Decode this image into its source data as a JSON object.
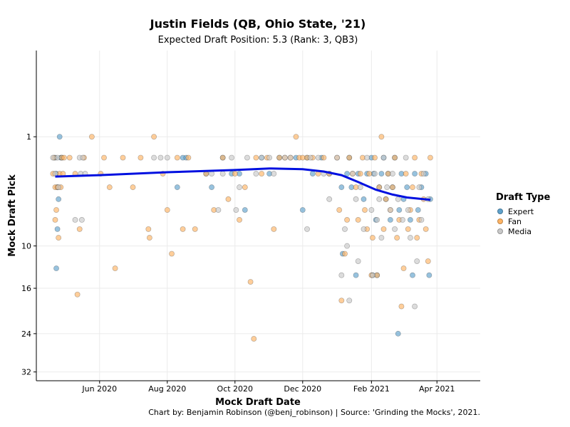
{
  "chart_data": {
    "type": "scatter",
    "title": "Justin Fields (QB, Ohio State, '21)",
    "subtitle": "Expected Draft Position: 5.3 (Rank: 3, QB3)",
    "xlabel": "Mock Draft Date",
    "ylabel": "Mock Draft Pick",
    "x_ticks": [
      "Jun 2020",
      "Aug 2020",
      "Oct 2020",
      "Dec 2020",
      "Feb 2021",
      "Apr 2021"
    ],
    "x_range": [
      "2020-04-05",
      "2021-05-10"
    ],
    "y_ticks": [
      1,
      10,
      16,
      24,
      32
    ],
    "y_range": [
      34,
      -0.5
    ],
    "y_scale": "sqrt",
    "grid": true,
    "legend": {
      "title": "Draft Type",
      "position": "right",
      "entries": [
        "Expert",
        "Fan",
        "Media"
      ]
    },
    "colors": {
      "Expert": "#5fa2cc",
      "Fan": "#ffb464",
      "Media": "#c9c9c9",
      "trend": "#0010e0"
    },
    "series": [
      {
        "name": "Expert",
        "points": [
          [
            "2020-04-22",
            2
          ],
          [
            "2020-04-23",
            3
          ],
          [
            "2020-04-24",
            4
          ],
          [
            "2020-04-25",
            5
          ],
          [
            "2020-04-26",
            1
          ],
          [
            "2020-04-27",
            2
          ],
          [
            "2020-04-28",
            2
          ],
          [
            "2020-04-23",
            13
          ],
          [
            "2020-04-24",
            8
          ],
          [
            "2020-08-10",
            4
          ],
          [
            "2020-08-15",
            2
          ],
          [
            "2020-08-18",
            2
          ],
          [
            "2020-09-05",
            3
          ],
          [
            "2020-09-10",
            4
          ],
          [
            "2020-09-20",
            2
          ],
          [
            "2020-09-28",
            3
          ],
          [
            "2020-10-05",
            3
          ],
          [
            "2020-10-10",
            6
          ],
          [
            "2020-10-25",
            2
          ],
          [
            "2020-11-01",
            3
          ],
          [
            "2020-11-10",
            2
          ],
          [
            "2020-11-25",
            2
          ],
          [
            "2020-12-01",
            6
          ],
          [
            "2020-12-05",
            2
          ],
          [
            "2020-12-10",
            3
          ],
          [
            "2020-12-18",
            2
          ],
          [
            "2020-12-25",
            3
          ],
          [
            "2021-01-05",
            4
          ],
          [
            "2021-01-06",
            11
          ],
          [
            "2021-01-10",
            3
          ],
          [
            "2021-01-12",
            2
          ],
          [
            "2021-01-14",
            4
          ],
          [
            "2021-01-18",
            14
          ],
          [
            "2021-01-20",
            3
          ],
          [
            "2021-01-25",
            5
          ],
          [
            "2021-01-28",
            3
          ],
          [
            "2021-02-01",
            2
          ],
          [
            "2021-02-02",
            14
          ],
          [
            "2021-02-03",
            3
          ],
          [
            "2021-02-05",
            7
          ],
          [
            "2021-02-06",
            14
          ],
          [
            "2021-02-08",
            4
          ],
          [
            "2021-02-10",
            3
          ],
          [
            "2021-02-12",
            2
          ],
          [
            "2021-02-14",
            5
          ],
          [
            "2021-02-16",
            3
          ],
          [
            "2021-02-18",
            7
          ],
          [
            "2021-02-20",
            4
          ],
          [
            "2021-02-22",
            2
          ],
          [
            "2021-02-25",
            24
          ],
          [
            "2021-02-26",
            6
          ],
          [
            "2021-02-28",
            3
          ],
          [
            "2021-03-02",
            5
          ],
          [
            "2021-03-05",
            4
          ],
          [
            "2021-03-08",
            7
          ],
          [
            "2021-03-10",
            14
          ],
          [
            "2021-03-12",
            3
          ],
          [
            "2021-03-15",
            6
          ],
          [
            "2021-03-18",
            4
          ],
          [
            "2021-03-22",
            3
          ],
          [
            "2021-03-25",
            14
          ],
          [
            "2021-03-26",
            5
          ]
        ]
      },
      {
        "name": "Fan",
        "points": [
          [
            "2020-04-20",
            3
          ],
          [
            "2020-04-21",
            2
          ],
          [
            "2020-04-22",
            4
          ],
          [
            "2020-04-22",
            7
          ],
          [
            "2020-04-23",
            6
          ],
          [
            "2020-04-24",
            4
          ],
          [
            "2020-04-25",
            9
          ],
          [
            "2020-04-26",
            3
          ],
          [
            "2020-04-27",
            4
          ],
          [
            "2020-04-28",
            2
          ],
          [
            "2020-04-29",
            3
          ],
          [
            "2020-04-30",
            2
          ],
          [
            "2020-05-05",
            2
          ],
          [
            "2020-05-10",
            3
          ],
          [
            "2020-05-12",
            17
          ],
          [
            "2020-05-14",
            8
          ],
          [
            "2020-05-18",
            2
          ],
          [
            "2020-05-25",
            1
          ],
          [
            "2020-06-02",
            3
          ],
          [
            "2020-06-05",
            2
          ],
          [
            "2020-06-10",
            4
          ],
          [
            "2020-06-15",
            13
          ],
          [
            "2020-06-22",
            2
          ],
          [
            "2020-07-01",
            4
          ],
          [
            "2020-07-08",
            2
          ],
          [
            "2020-07-15",
            8
          ],
          [
            "2020-07-16",
            9
          ],
          [
            "2020-07-20",
            1
          ],
          [
            "2020-07-28",
            3
          ],
          [
            "2020-08-01",
            6
          ],
          [
            "2020-08-05",
            11
          ],
          [
            "2020-08-10",
            2
          ],
          [
            "2020-08-15",
            8
          ],
          [
            "2020-08-20",
            2
          ],
          [
            "2020-08-26",
            8
          ],
          [
            "2020-09-05",
            3
          ],
          [
            "2020-09-12",
            6
          ],
          [
            "2020-09-20",
            2
          ],
          [
            "2020-09-25",
            5
          ],
          [
            "2020-10-01",
            3
          ],
          [
            "2020-10-05",
            7
          ],
          [
            "2020-10-10",
            4
          ],
          [
            "2020-10-15",
            15
          ],
          [
            "2020-10-18",
            25
          ],
          [
            "2020-10-20",
            2
          ],
          [
            "2020-10-25",
            3
          ],
          [
            "2020-10-30",
            2
          ],
          [
            "2020-11-05",
            8
          ],
          [
            "2020-11-10",
            2
          ],
          [
            "2020-11-15",
            2
          ],
          [
            "2020-11-20",
            2
          ],
          [
            "2020-11-25",
            1
          ],
          [
            "2020-11-28",
            2
          ],
          [
            "2020-12-01",
            2
          ],
          [
            "2020-12-05",
            2
          ],
          [
            "2020-12-10",
            2
          ],
          [
            "2020-12-15",
            3
          ],
          [
            "2020-12-20",
            2
          ],
          [
            "2020-12-25",
            3
          ],
          [
            "2021-01-01",
            2
          ],
          [
            "2021-01-03",
            6
          ],
          [
            "2021-01-05",
            18
          ],
          [
            "2021-01-08",
            11
          ],
          [
            "2021-01-10",
            7
          ],
          [
            "2021-01-12",
            2
          ],
          [
            "2021-01-15",
            3
          ],
          [
            "2021-01-18",
            4
          ],
          [
            "2021-01-20",
            7
          ],
          [
            "2021-01-22",
            3
          ],
          [
            "2021-01-24",
            2
          ],
          [
            "2021-01-26",
            6
          ],
          [
            "2021-01-28",
            8
          ],
          [
            "2021-01-30",
            3
          ],
          [
            "2021-02-01",
            14
          ],
          [
            "2021-02-02",
            9
          ],
          [
            "2021-02-04",
            2
          ],
          [
            "2021-02-06",
            14
          ],
          [
            "2021-02-08",
            4
          ],
          [
            "2021-02-10",
            1
          ],
          [
            "2021-02-12",
            8
          ],
          [
            "2021-02-14",
            5
          ],
          [
            "2021-02-16",
            3
          ],
          [
            "2021-02-18",
            6
          ],
          [
            "2021-02-20",
            4
          ],
          [
            "2021-02-22",
            2
          ],
          [
            "2021-02-24",
            9
          ],
          [
            "2021-02-26",
            7
          ],
          [
            "2021-02-28",
            19
          ],
          [
            "2021-03-02",
            13
          ],
          [
            "2021-03-04",
            3
          ],
          [
            "2021-03-06",
            8
          ],
          [
            "2021-03-08",
            6
          ],
          [
            "2021-03-10",
            4
          ],
          [
            "2021-03-12",
            2
          ],
          [
            "2021-03-14",
            9
          ],
          [
            "2021-03-16",
            7
          ],
          [
            "2021-03-18",
            3
          ],
          [
            "2021-03-20",
            5
          ],
          [
            "2021-03-22",
            8
          ],
          [
            "2021-03-24",
            12
          ],
          [
            "2021-03-26",
            2
          ]
        ]
      },
      {
        "name": "Media",
        "points": [
          [
            "2020-04-20",
            2
          ],
          [
            "2020-04-22",
            3
          ],
          [
            "2020-04-24",
            2
          ],
          [
            "2020-04-25",
            4
          ],
          [
            "2020-05-10",
            7
          ],
          [
            "2020-05-14",
            2
          ],
          [
            "2020-05-15",
            3
          ],
          [
            "2020-05-16",
            7
          ],
          [
            "2020-05-17",
            2
          ],
          [
            "2020-05-19",
            3
          ],
          [
            "2020-07-20",
            2
          ],
          [
            "2020-07-26",
            2
          ],
          [
            "2020-08-01",
            2
          ],
          [
            "2020-09-10",
            3
          ],
          [
            "2020-09-16",
            6
          ],
          [
            "2020-09-20",
            3
          ],
          [
            "2020-09-28",
            2
          ],
          [
            "2020-10-02",
            6
          ],
          [
            "2020-10-05",
            4
          ],
          [
            "2020-10-12",
            2
          ],
          [
            "2020-10-20",
            3
          ],
          [
            "2020-10-25",
            2
          ],
          [
            "2020-11-01",
            2
          ],
          [
            "2020-11-05",
            3
          ],
          [
            "2020-11-15",
            2
          ],
          [
            "2020-11-20",
            2
          ],
          [
            "2020-12-05",
            8
          ],
          [
            "2020-12-08",
            2
          ],
          [
            "2020-12-15",
            2
          ],
          [
            "2020-12-20",
            3
          ],
          [
            "2020-12-25",
            5
          ],
          [
            "2021-01-01",
            2
          ],
          [
            "2021-01-05",
            14
          ],
          [
            "2021-01-08",
            8
          ],
          [
            "2021-01-10",
            10
          ],
          [
            "2021-01-12",
            18
          ],
          [
            "2021-01-15",
            3
          ],
          [
            "2021-01-18",
            5
          ],
          [
            "2021-01-20",
            12
          ],
          [
            "2021-01-22",
            4
          ],
          [
            "2021-01-25",
            8
          ],
          [
            "2021-01-28",
            2
          ],
          [
            "2021-02-01",
            6
          ],
          [
            "2021-02-02",
            14
          ],
          [
            "2021-02-04",
            3
          ],
          [
            "2021-02-06",
            7
          ],
          [
            "2021-02-08",
            5
          ],
          [
            "2021-02-10",
            9
          ],
          [
            "2021-02-12",
            2
          ],
          [
            "2021-02-15",
            4
          ],
          [
            "2021-02-18",
            6
          ],
          [
            "2021-02-20",
            3
          ],
          [
            "2021-02-22",
            8
          ],
          [
            "2021-02-25",
            5
          ],
          [
            "2021-03-01",
            7
          ],
          [
            "2021-03-04",
            2
          ],
          [
            "2021-03-06",
            6
          ],
          [
            "2021-03-08",
            9
          ],
          [
            "2021-03-12",
            19
          ],
          [
            "2021-03-14",
            12
          ],
          [
            "2021-03-16",
            4
          ],
          [
            "2021-03-18",
            7
          ],
          [
            "2021-03-20",
            3
          ],
          [
            "2021-03-24",
            5
          ]
        ]
      }
    ],
    "trend": {
      "x": [
        "2020-04-22",
        "2020-06-01",
        "2020-08-01",
        "2020-10-01",
        "2020-11-01",
        "2020-12-01",
        "2020-12-20",
        "2021-01-05",
        "2021-01-20",
        "2021-02-05",
        "2021-02-20",
        "2021-03-05",
        "2021-03-26"
      ],
      "y": [
        3.2,
        3.1,
        2.9,
        2.75,
        2.65,
        2.7,
        2.85,
        3.1,
        3.6,
        4.2,
        4.6,
        4.85,
        5.05
      ]
    }
  },
  "caption": "Chart by: Benjamin Robinson (@benj_robinson) | Source: 'Grinding the Mocks', 2021."
}
